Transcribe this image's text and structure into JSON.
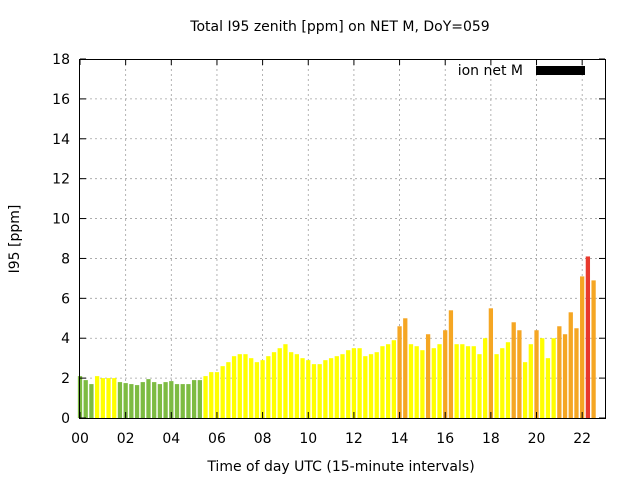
{
  "chart_data": {
    "type": "bar",
    "title": "Total I95 zenith [ppm] on NET M, DoY=059",
    "xlabel": "Time of day UTC (15-minute intervals)",
    "ylabel": "I95 [ppm]",
    "xlim": [
      0,
      23
    ],
    "ylim": [
      0,
      18
    ],
    "x_ticks": [
      0,
      2,
      4,
      6,
      8,
      10,
      12,
      14,
      16,
      18,
      20,
      22
    ],
    "x_tick_labels": [
      "00",
      "02",
      "04",
      "06",
      "08",
      "10",
      "12",
      "14",
      "16",
      "18",
      "20",
      "22"
    ],
    "y_ticks": [
      0,
      2,
      4,
      6,
      8,
      10,
      12,
      14,
      16,
      18
    ],
    "y_tick_labels": [
      "0",
      "2",
      "4",
      "6",
      "8",
      "10",
      "12",
      "14",
      "16",
      "18"
    ],
    "grid": true,
    "legend": {
      "label": "ion net M",
      "color": "#000000",
      "placement": "top-right"
    },
    "bar_interval_hours": 0.25,
    "colors": {
      "green": "#7dbb42",
      "yellow": "#ffff00",
      "orange": "#f5a623",
      "red": "#e8392d"
    },
    "values": [
      2.1,
      1.9,
      1.7,
      2.1,
      2.0,
      2.0,
      2.0,
      1.8,
      1.75,
      1.7,
      1.65,
      1.8,
      1.95,
      1.8,
      1.7,
      1.8,
      1.85,
      1.7,
      1.7,
      1.7,
      1.9,
      1.9,
      2.1,
      2.3,
      2.3,
      2.6,
      2.8,
      3.1,
      3.2,
      3.2,
      3.0,
      2.8,
      2.9,
      3.1,
      3.3,
      3.5,
      3.7,
      3.3,
      3.2,
      3.0,
      2.9,
      2.7,
      2.7,
      2.9,
      3.0,
      3.1,
      3.2,
      3.4,
      3.5,
      3.5,
      3.1,
      3.2,
      3.3,
      3.6,
      3.7,
      3.9,
      4.6,
      5.0,
      3.7,
      3.6,
      3.4,
      4.2,
      3.5,
      3.7,
      4.4,
      5.4,
      3.7,
      3.7,
      3.6,
      3.6,
      3.2,
      4.0,
      5.5,
      3.2,
      3.5,
      3.8,
      4.8,
      4.4,
      2.8,
      3.7,
      4.4,
      4.0,
      3.0,
      4.0,
      4.6,
      4.2,
      5.3,
      4.5,
      7.1,
      8.1,
      6.9
    ],
    "bar_colors": [
      "green",
      "green",
      "green",
      "yellow",
      "yellow",
      "yellow",
      "yellow",
      "green",
      "green",
      "green",
      "green",
      "green",
      "green",
      "green",
      "green",
      "green",
      "green",
      "green",
      "green",
      "green",
      "green",
      "green",
      "yellow",
      "yellow",
      "yellow",
      "yellow",
      "yellow",
      "yellow",
      "yellow",
      "yellow",
      "yellow",
      "yellow",
      "yellow",
      "yellow",
      "yellow",
      "yellow",
      "yellow",
      "yellow",
      "yellow",
      "yellow",
      "yellow",
      "yellow",
      "yellow",
      "yellow",
      "yellow",
      "yellow",
      "yellow",
      "yellow",
      "yellow",
      "yellow",
      "yellow",
      "yellow",
      "yellow",
      "yellow",
      "yellow",
      "yellow",
      "orange",
      "orange",
      "yellow",
      "yellow",
      "yellow",
      "orange",
      "yellow",
      "yellow",
      "orange",
      "orange",
      "yellow",
      "yellow",
      "yellow",
      "yellow",
      "yellow",
      "yellow",
      "orange",
      "yellow",
      "yellow",
      "yellow",
      "orange",
      "orange",
      "yellow",
      "yellow",
      "orange",
      "yellow",
      "yellow",
      "yellow",
      "orange",
      "orange",
      "orange",
      "orange",
      "orange",
      "red",
      "orange"
    ]
  }
}
